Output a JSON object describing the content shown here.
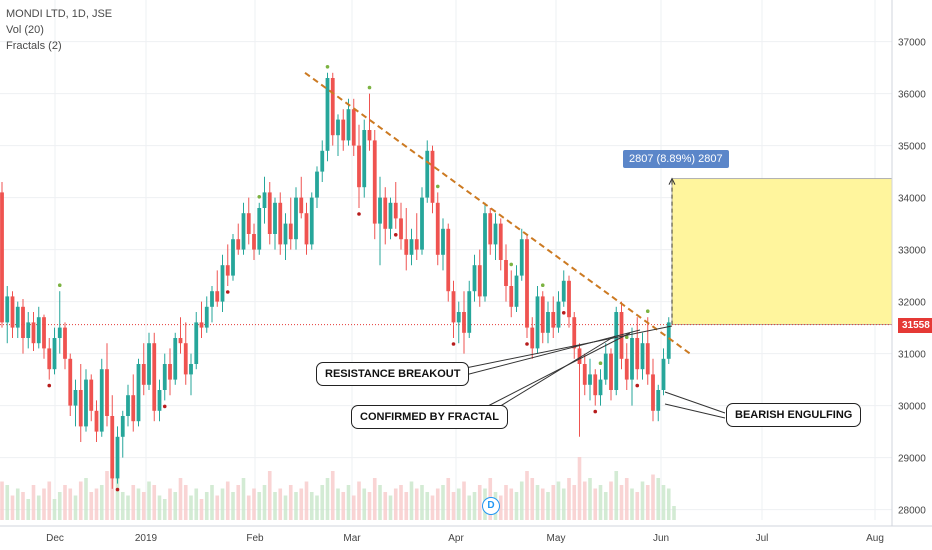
{
  "legend": {
    "symbol": "MONDI LTD, 1D, JSE",
    "vol": "Vol (20)",
    "fractals": "Fractals (2)"
  },
  "colors": {
    "up": "#26a69a",
    "down": "#ef5350",
    "trendline": "#cc7a22",
    "target_zone": "#fff59d",
    "price_line": "#e53935",
    "measure_label": "#5b86c9"
  },
  "annotations": {
    "resistance": "RESISTANCE BREAKOUT",
    "fractal": "CONFIRMED BY FRACTAL",
    "engulfing": "BEARISH ENGULFING",
    "measure": "2807 (8.89%) 2807"
  },
  "current_price_label": "31558",
  "event_badge": "D",
  "chart_data": {
    "type": "candlestick",
    "y_axis": {
      "min": 27800,
      "max": 37800,
      "ticks": [
        "28000",
        "29000",
        "30000",
        "31000",
        "32000",
        "33000",
        "34000",
        "35000",
        "36000",
        "37000"
      ]
    },
    "x_axis": {
      "ticks": [
        "Dec",
        "2019",
        "Feb",
        "Mar",
        "Apr",
        "May",
        "Jun",
        "Jul",
        "Aug"
      ]
    },
    "current_price": 31558,
    "trendline": {
      "from": 36400,
      "to": 31000
    },
    "target_zone": {
      "low": 31558,
      "high": 34365
    },
    "candles": [
      [
        34100,
        34300,
        31500,
        31600
      ],
      [
        31600,
        32300,
        31200,
        32100
      ],
      [
        32100,
        32200,
        31300,
        31500
      ],
      [
        31500,
        32000,
        31300,
        31900
      ],
      [
        31900,
        32050,
        31000,
        31300
      ],
      [
        31300,
        31800,
        31100,
        31600
      ],
      [
        31600,
        31800,
        31050,
        31200
      ],
      [
        31200,
        31900,
        31100,
        31700
      ],
      [
        31700,
        31750,
        30900,
        31100
      ],
      [
        31100,
        31300,
        30500,
        30700
      ],
      [
        30700,
        31500,
        30600,
        31300
      ],
      [
        31300,
        32200,
        31000,
        31500
      ],
      [
        31500,
        31600,
        30700,
        30900
      ],
      [
        30900,
        31000,
        29800,
        30000
      ],
      [
        30000,
        30500,
        29600,
        30300
      ],
      [
        30300,
        30800,
        29300,
        29600
      ],
      [
        29600,
        30700,
        29500,
        30500
      ],
      [
        30500,
        30600,
        29700,
        29900
      ],
      [
        29900,
        30100,
        29300,
        29500
      ],
      [
        29500,
        30900,
        29400,
        30700
      ],
      [
        30700,
        31200,
        29600,
        29800
      ],
      [
        29800,
        30200,
        28400,
        28600
      ],
      [
        28600,
        29600,
        28500,
        29400
      ],
      [
        29400,
        29900,
        29000,
        29800
      ],
      [
        29800,
        30400,
        29600,
        30200
      ],
      [
        30200,
        30600,
        29500,
        29700
      ],
      [
        29700,
        30900,
        29600,
        30800
      ],
      [
        30800,
        31200,
        30200,
        30400
      ],
      [
        30400,
        31400,
        30300,
        31200
      ],
      [
        31200,
        31400,
        29700,
        29900
      ],
      [
        29900,
        30500,
        29700,
        30300
      ],
      [
        30300,
        31000,
        30100,
        30800
      ],
      [
        30800,
        31100,
        30200,
        30500
      ],
      [
        30500,
        31400,
        30400,
        31300
      ],
      [
        31300,
        31700,
        31000,
        31200
      ],
      [
        31200,
        31600,
        30400,
        30600
      ],
      [
        30600,
        31000,
        30200,
        30800
      ],
      [
        30800,
        31800,
        30700,
        31600
      ],
      [
        31600,
        32000,
        31300,
        31500
      ],
      [
        31500,
        32100,
        31400,
        31900
      ],
      [
        31900,
        32300,
        31600,
        32200
      ],
      [
        32200,
        32600,
        31900,
        32000
      ],
      [
        32000,
        32900,
        31800,
        32700
      ],
      [
        32700,
        33100,
        32300,
        32500
      ],
      [
        32500,
        33300,
        32400,
        33200
      ],
      [
        33200,
        33500,
        32900,
        33000
      ],
      [
        33000,
        33900,
        32900,
        33700
      ],
      [
        33700,
        34000,
        33100,
        33300
      ],
      [
        33300,
        33500,
        32800,
        33000
      ],
      [
        33000,
        33900,
        32900,
        33800
      ],
      [
        33800,
        34400,
        33500,
        34100
      ],
      [
        34100,
        34300,
        33100,
        33300
      ],
      [
        33300,
        34000,
        33000,
        33900
      ],
      [
        33900,
        34100,
        32900,
        33100
      ],
      [
        33100,
        33700,
        32800,
        33500
      ],
      [
        33500,
        34000,
        33000,
        33200
      ],
      [
        33200,
        34200,
        33000,
        34000
      ],
      [
        34000,
        34400,
        33600,
        33700
      ],
      [
        33700,
        33900,
        32900,
        33100
      ],
      [
        33100,
        34100,
        33000,
        34000
      ],
      [
        34000,
        34600,
        33800,
        34500
      ],
      [
        34500,
        35100,
        34300,
        34900
      ],
      [
        34900,
        36400,
        34700,
        36300
      ],
      [
        36300,
        36400,
        35000,
        35200
      ],
      [
        35200,
        35600,
        34800,
        35500
      ],
      [
        35500,
        35700,
        34900,
        35100
      ],
      [
        35100,
        35900,
        35000,
        35700
      ],
      [
        35700,
        35900,
        34800,
        35000
      ],
      [
        35000,
        35400,
        33800,
        34200
      ],
      [
        34200,
        35500,
        34000,
        35300
      ],
      [
        35300,
        36000,
        34900,
        35100
      ],
      [
        35100,
        35300,
        33200,
        33500
      ],
      [
        33500,
        34400,
        32700,
        34000
      ],
      [
        34000,
        34200,
        33100,
        33400
      ],
      [
        33400,
        34000,
        33200,
        33900
      ],
      [
        33900,
        34300,
        33400,
        33600
      ],
      [
        33600,
        33900,
        33000,
        33200
      ],
      [
        33200,
        33800,
        32600,
        32900
      ],
      [
        32900,
        33400,
        32700,
        33200
      ],
      [
        33200,
        33700,
        32800,
        33000
      ],
      [
        33000,
        34200,
        32900,
        34000
      ],
      [
        34000,
        35100,
        33900,
        34900
      ],
      [
        34900,
        35000,
        33700,
        33900
      ],
      [
        33900,
        34100,
        32700,
        32900
      ],
      [
        32900,
        33600,
        32600,
        33400
      ],
      [
        33400,
        33500,
        32000,
        32200
      ],
      [
        32200,
        32400,
        31300,
        31600
      ],
      [
        31600,
        32000,
        31200,
        31800
      ],
      [
        31800,
        32200,
        31000,
        31400
      ],
      [
        31400,
        32400,
        31300,
        32200
      ],
      [
        32200,
        32900,
        32000,
        32700
      ],
      [
        32700,
        33000,
        31900,
        32100
      ],
      [
        32100,
        33900,
        32000,
        33700
      ],
      [
        33700,
        33800,
        32900,
        33100
      ],
      [
        33100,
        33700,
        32800,
        33500
      ],
      [
        33500,
        33600,
        32600,
        32800
      ],
      [
        32800,
        33100,
        32000,
        32300
      ],
      [
        32300,
        32600,
        31700,
        31900
      ],
      [
        31900,
        32700,
        31800,
        32500
      ],
      [
        32500,
        33400,
        32400,
        33200
      ],
      [
        33200,
        33300,
        31300,
        31500
      ],
      [
        31500,
        31700,
        30900,
        31100
      ],
      [
        31100,
        32300,
        31000,
        32100
      ],
      [
        32100,
        32200,
        31200,
        31400
      ],
      [
        31400,
        32000,
        31200,
        31800
      ],
      [
        31800,
        32100,
        31300,
        31500
      ],
      [
        31500,
        32200,
        31400,
        32000
      ],
      [
        32000,
        32600,
        31900,
        32400
      ],
      [
        32400,
        32500,
        31500,
        31700
      ],
      [
        31700,
        31800,
        30900,
        31100
      ],
      [
        31100,
        31200,
        29400,
        30800
      ],
      [
        30800,
        31000,
        30200,
        30400
      ],
      [
        30400,
        30900,
        30100,
        30600
      ],
      [
        30600,
        30700,
        30000,
        30200
      ],
      [
        30200,
        30700,
        30000,
        30500
      ],
      [
        30500,
        31200,
        30400,
        31000
      ],
      [
        31000,
        31100,
        30100,
        30300
      ],
      [
        30300,
        31900,
        30200,
        31800
      ],
      [
        31800,
        32000,
        30700,
        30900
      ],
      [
        30900,
        31200,
        30300,
        30500
      ],
      [
        30500,
        31500,
        30000,
        31300
      ],
      [
        31300,
        31700,
        30500,
        30700
      ],
      [
        30700,
        31400,
        30500,
        31200
      ],
      [
        31200,
        31700,
        30400,
        30600
      ],
      [
        30600,
        30900,
        29700,
        29900
      ],
      [
        29900,
        30400,
        29700,
        30300
      ],
      [
        30300,
        31100,
        30200,
        30900
      ],
      [
        30900,
        31700,
        30800,
        31600
      ]
    ],
    "volume": [
      0.55,
      0.5,
      0.35,
      0.45,
      0.4,
      0.3,
      0.5,
      0.35,
      0.45,
      0.55,
      0.3,
      0.4,
      0.5,
      0.45,
      0.35,
      0.55,
      0.6,
      0.4,
      0.45,
      0.5,
      0.7,
      0.8,
      0.6,
      0.4,
      0.35,
      0.5,
      0.45,
      0.4,
      0.55,
      0.5,
      0.35,
      0.3,
      0.45,
      0.4,
      0.6,
      0.5,
      0.35,
      0.45,
      0.3,
      0.4,
      0.5,
      0.35,
      0.45,
      0.55,
      0.4,
      0.5,
      0.6,
      0.35,
      0.45,
      0.4,
      0.5,
      0.7,
      0.4,
      0.45,
      0.35,
      0.5,
      0.4,
      0.45,
      0.55,
      0.4,
      0.35,
      0.5,
      0.6,
      0.7,
      0.45,
      0.4,
      0.5,
      0.35,
      0.55,
      0.45,
      0.4,
      0.6,
      0.5,
      0.4,
      0.35,
      0.45,
      0.5,
      0.4,
      0.55,
      0.45,
      0.5,
      0.4,
      0.35,
      0.45,
      0.5,
      0.6,
      0.4,
      0.45,
      0.55,
      0.35,
      0.4,
      0.5,
      0.45,
      0.6,
      0.4,
      0.35,
      0.5,
      0.45,
      0.4,
      0.55,
      0.7,
      0.6,
      0.5,
      0.45,
      0.4,
      0.5,
      0.55,
      0.45,
      0.6,
      0.5,
      0.9,
      0.55,
      0.6,
      0.45,
      0.5,
      0.4,
      0.55,
      0.7,
      0.5,
      0.6,
      0.45,
      0.4,
      0.55,
      0.5,
      0.65,
      0.6,
      0.5,
      0.45,
      0.2
    ],
    "fractals_up": [
      11,
      49,
      62,
      70,
      83,
      97,
      103,
      114,
      119,
      123
    ],
    "fractals_down": [
      9,
      22,
      31,
      43,
      68,
      75,
      86,
      100,
      107,
      113,
      121
    ]
  }
}
